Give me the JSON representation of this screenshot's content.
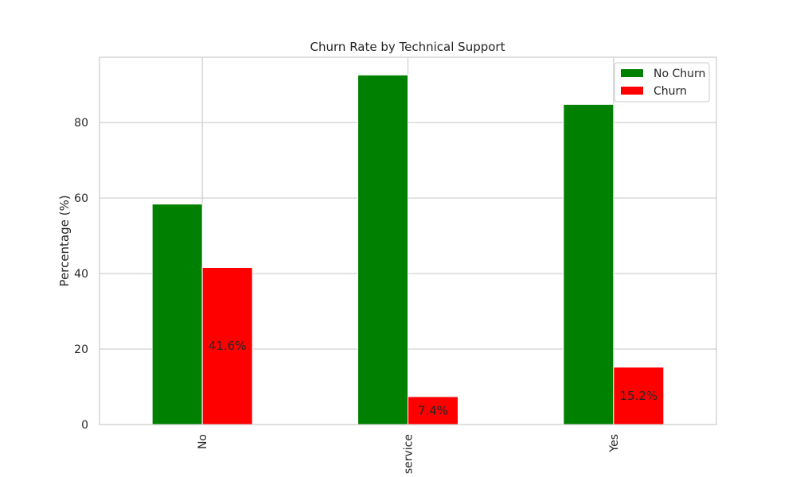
{
  "chart_data": {
    "type": "bar",
    "title": "Churn Rate by Technical Support",
    "xlabel": "",
    "ylabel": "Percentage (%)",
    "categories": [
      "No",
      "service",
      "Yes"
    ],
    "series": [
      {
        "name": "No Churn",
        "color": "#008000",
        "values": [
          58.4,
          92.6,
          84.8
        ]
      },
      {
        "name": "Churn",
        "color": "#ff0000",
        "values": [
          41.6,
          7.4,
          15.2
        ]
      }
    ],
    "data_labels": [
      "41.6%",
      "7.4%",
      "15.2%"
    ],
    "ylim": [
      0,
      97.3
    ],
    "yticks": [
      0,
      20,
      40,
      60,
      80
    ],
    "grid": true,
    "legend_position": "top-right"
  }
}
